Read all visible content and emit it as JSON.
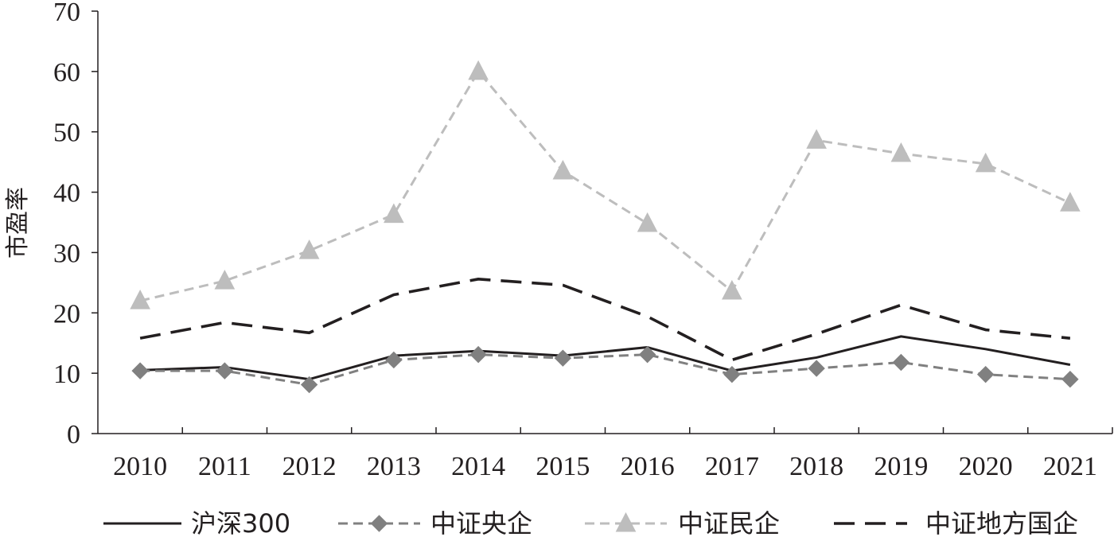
{
  "chart_data": {
    "type": "line",
    "title": "",
    "xlabel": "",
    "ylabel": "市盈率",
    "ylim": [
      0,
      70
    ],
    "yticks": [
      0,
      10,
      20,
      30,
      40,
      50,
      60,
      70
    ],
    "grid": false,
    "legend_position": "bottom",
    "categories": [
      "2010",
      "2011",
      "2012",
      "2013",
      "2014",
      "2015",
      "2016",
      "2017",
      "2018",
      "2019",
      "2020",
      "2021"
    ],
    "series": [
      {
        "name": "沪深300",
        "values": [
          10.5,
          11.0,
          9.0,
          12.9,
          13.7,
          12.9,
          14.3,
          10.4,
          12.6,
          16.1,
          14.0,
          11.4
        ],
        "color": "#231f20",
        "line_style": "solid",
        "marker": "none"
      },
      {
        "name": "中证央企",
        "values": [
          10.4,
          10.4,
          8.1,
          12.2,
          13.1,
          12.5,
          13.1,
          9.8,
          10.8,
          11.8,
          9.8,
          9.0
        ],
        "color": "#808080",
        "line_style": "dashed",
        "marker": "diamond"
      },
      {
        "name": "中证民企",
        "values": [
          22.0,
          25.3,
          30.3,
          36.3,
          60.0,
          43.5,
          34.8,
          23.6,
          48.6,
          46.4,
          44.7,
          38.2
        ],
        "color": "#bdbdbd",
        "line_style": "dashed",
        "marker": "triangle"
      },
      {
        "name": "中证地方国企",
        "values": [
          15.8,
          18.4,
          16.7,
          23.0,
          25.6,
          24.6,
          19.4,
          12.2,
          16.5,
          21.3,
          17.2,
          15.8
        ],
        "color": "#231f20",
        "line_style": "long-dashed",
        "marker": "none"
      }
    ]
  }
}
